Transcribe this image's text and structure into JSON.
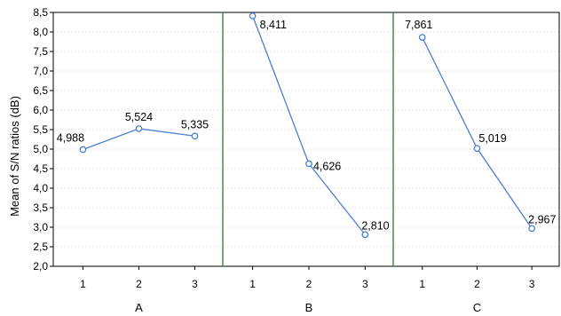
{
  "chart_data": {
    "type": "line",
    "ylabel": "Mean of S/N ratios (dB)",
    "ylim": [
      2.0,
      8.5
    ],
    "ytick_step": 0.5,
    "ytick_labels": [
      "2,0",
      "2,5",
      "3,0",
      "3,5",
      "4,0",
      "4,5",
      "5,0",
      "5,5",
      "6,0",
      "6,5",
      "7,0",
      "7,5",
      "8,0",
      "8,5"
    ],
    "grid": true,
    "line_color": "#4a7fd0",
    "separator_color": "#2e7d32",
    "panels": [
      {
        "factor": "A",
        "levels": [
          "1",
          "2",
          "3"
        ],
        "values": [
          4.988,
          5.524,
          5.335
        ],
        "labels": [
          "4,988",
          "5,524",
          "5,335"
        ]
      },
      {
        "factor": "B",
        "levels": [
          "1",
          "2",
          "3"
        ],
        "values": [
          8.411,
          4.626,
          2.81
        ],
        "labels": [
          "8,411",
          "4,626",
          "2,810"
        ]
      },
      {
        "factor": "C",
        "levels": [
          "1",
          "2",
          "3"
        ],
        "values": [
          7.861,
          5.019,
          2.967
        ],
        "labels": [
          "7,861",
          "5,019",
          "2,967"
        ]
      }
    ]
  }
}
